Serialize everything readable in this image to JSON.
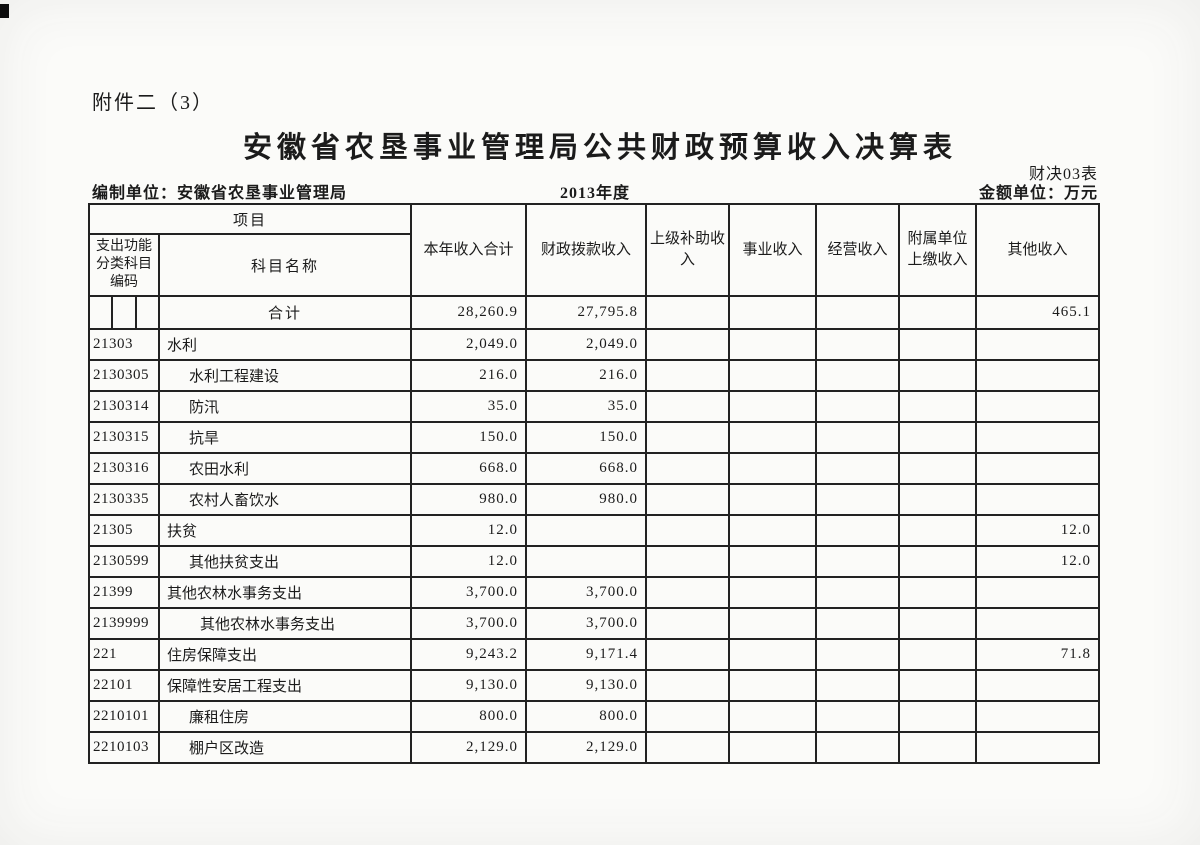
{
  "page": {
    "attachment_label": "附件二（3）",
    "title": "安徽省农垦事业管理局公共财政预算收入决算表",
    "form_number": "财决03表",
    "prepared_by": "编制单位：安徽省农垦事业管理局",
    "fiscal_year": "2013年度",
    "unit_label": "金额单位：万元"
  },
  "table": {
    "header": {
      "project": "项目",
      "code_label": "支出功能分类科目编码",
      "name_label": "科目名称",
      "columns": [
        "本年收入合计",
        "财政拨款收入",
        "上级补助收入",
        "事业收入",
        "经营收入",
        "附属单位上缴收入",
        "其他收入"
      ]
    },
    "row_fields": [
      "code",
      "name",
      "total",
      "fiscal",
      "superior",
      "business",
      "operating",
      "affiliated",
      "other"
    ],
    "rows": [
      {
        "code": "",
        "code_split": true,
        "name": "合计",
        "name_align": "center",
        "indent": 0,
        "total": "28,260.9",
        "fiscal": "27,795.8",
        "superior": "",
        "business": "",
        "operating": "",
        "affiliated": "",
        "other": "465.1"
      },
      {
        "code": "21303",
        "name": "水利",
        "indent": 0,
        "total": "2,049.0",
        "fiscal": "2,049.0",
        "superior": "",
        "business": "",
        "operating": "",
        "affiliated": "",
        "other": ""
      },
      {
        "code": "2130305",
        "name": "水利工程建设",
        "indent": 1,
        "total": "216.0",
        "fiscal": "216.0",
        "superior": "",
        "business": "",
        "operating": "",
        "affiliated": "",
        "other": ""
      },
      {
        "code": "2130314",
        "name": "防汛",
        "indent": 1,
        "total": "35.0",
        "fiscal": "35.0",
        "superior": "",
        "business": "",
        "operating": "",
        "affiliated": "",
        "other": ""
      },
      {
        "code": "2130315",
        "name": "抗旱",
        "indent": 1,
        "total": "150.0",
        "fiscal": "150.0",
        "superior": "",
        "business": "",
        "operating": "",
        "affiliated": "",
        "other": ""
      },
      {
        "code": "2130316",
        "name": "农田水利",
        "indent": 1,
        "total": "668.0",
        "fiscal": "668.0",
        "superior": "",
        "business": "",
        "operating": "",
        "affiliated": "",
        "other": ""
      },
      {
        "code": "2130335",
        "name": "农村人畜饮水",
        "indent": 1,
        "total": "980.0",
        "fiscal": "980.0",
        "superior": "",
        "business": "",
        "operating": "",
        "affiliated": "",
        "other": ""
      },
      {
        "code": "21305",
        "name": "扶贫",
        "indent": 0,
        "total": "12.0",
        "fiscal": "",
        "superior": "",
        "business": "",
        "operating": "",
        "affiliated": "",
        "other": "12.0"
      },
      {
        "code": "2130599",
        "name": "其他扶贫支出",
        "indent": 1,
        "total": "12.0",
        "fiscal": "",
        "superior": "",
        "business": "",
        "operating": "",
        "affiliated": "",
        "other": "12.0"
      },
      {
        "code": "21399",
        "name": "其他农林水事务支出",
        "indent": 0,
        "total": "3,700.0",
        "fiscal": "3,700.0",
        "superior": "",
        "business": "",
        "operating": "",
        "affiliated": "",
        "other": ""
      },
      {
        "code": "2139999",
        "name": "其他农林水事务支出",
        "indent": 2,
        "total": "3,700.0",
        "fiscal": "3,700.0",
        "superior": "",
        "business": "",
        "operating": "",
        "affiliated": "",
        "other": ""
      },
      {
        "code": "221",
        "name": "住房保障支出",
        "indent": 0,
        "total": "9,243.2",
        "fiscal": "9,171.4",
        "superior": "",
        "business": "",
        "operating": "",
        "affiliated": "",
        "other": "71.8"
      },
      {
        "code": "22101",
        "name": "保障性安居工程支出",
        "indent": 0,
        "total": "9,130.0",
        "fiscal": "9,130.0",
        "superior": "",
        "business": "",
        "operating": "",
        "affiliated": "",
        "other": ""
      },
      {
        "code": "2210101",
        "name": "廉租住房",
        "indent": 1,
        "total": "800.0",
        "fiscal": "800.0",
        "superior": "",
        "business": "",
        "operating": "",
        "affiliated": "",
        "other": ""
      },
      {
        "code": "2210103",
        "name": "棚户区改造",
        "indent": 1,
        "total": "2,129.0",
        "fiscal": "2,129.0",
        "superior": "",
        "business": "",
        "operating": "",
        "affiliated": "",
        "other": ""
      }
    ]
  }
}
